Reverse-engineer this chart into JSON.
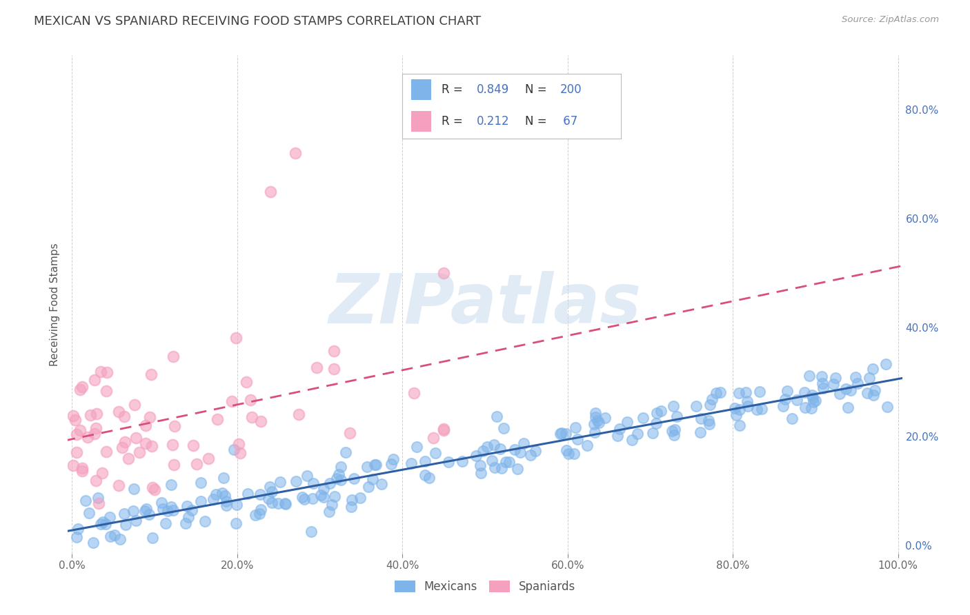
{
  "title": "MEXICAN VS SPANIARD RECEIVING FOOD STAMPS CORRELATION CHART",
  "source_text": "Source: ZipAtlas.com",
  "ylabel": "Receiving Food Stamps",
  "watermark": "ZIPatlas",
  "xlim": [
    0.0,
    1.0
  ],
  "ylim": [
    0.0,
    0.9
  ],
  "xticks": [
    0.0,
    0.2,
    0.4,
    0.6,
    0.8,
    1.0
  ],
  "xtick_labels": [
    "0.0%",
    "20.0%",
    "40.0%",
    "60.0%",
    "80.0%",
    "100.0%"
  ],
  "ytick_vals": [
    0.0,
    0.2,
    0.4,
    0.6,
    0.8
  ],
  "ytick_labels_right": [
    "0.0%",
    "20.0%",
    "40.0%",
    "60.0%",
    "80.0%"
  ],
  "mexican_R": 0.849,
  "mexican_N": 200,
  "spaniard_R": 0.212,
  "spaniard_N": 67,
  "mexican_color": "#7EB4EA",
  "spaniard_color": "#F4A0BE",
  "mexican_line_color": "#2E5FA3",
  "spaniard_line_color": "#D94F7A",
  "background_color": "#FFFFFF",
  "grid_color": "#BBBBBB",
  "title_color": "#404040",
  "legend_R_N_color": "#4472C4",
  "mexican_seed": 42,
  "spaniard_seed": 99
}
